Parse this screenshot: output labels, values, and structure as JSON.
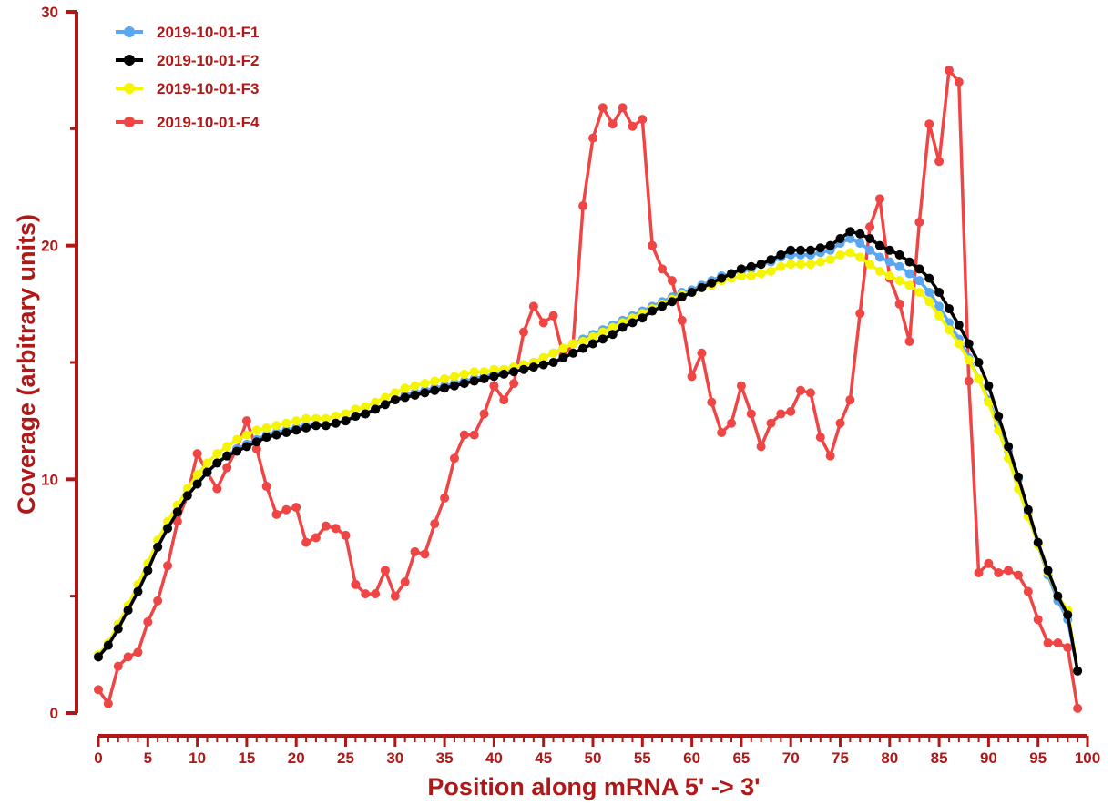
{
  "chart_data": {
    "type": "line",
    "title": "",
    "xlabel": "Position along mRNA 5' -> 3'",
    "ylabel": "Coverage (arbitrary units)",
    "xlim": [
      0,
      100
    ],
    "ylim": [
      0,
      30
    ],
    "x_ticks": [
      "0",
      "5",
      "10",
      "15",
      "20",
      "25",
      "30",
      "35",
      "40",
      "45",
      "50",
      "55",
      "60",
      "65",
      "70",
      "75",
      "80",
      "85",
      "90",
      "95",
      "100"
    ],
    "y_ticks": [
      "0",
      "10",
      "20",
      "30"
    ],
    "grid": false,
    "legend_position": "top-left",
    "series": [
      {
        "name": "2019-10-01-F1",
        "color": "#5aa6f0",
        "values": [
          2.4,
          2.9,
          3.6,
          4.4,
          5.2,
          6.1,
          7.1,
          7.9,
          8.6,
          9.3,
          9.8,
          10.3,
          10.7,
          11.0,
          11.3,
          11.5,
          11.7,
          11.9,
          12.0,
          12.1,
          12.2,
          12.3,
          12.3,
          12.3,
          12.4,
          12.5,
          12.7,
          12.8,
          13.0,
          13.2,
          13.4,
          13.6,
          13.7,
          13.8,
          13.9,
          14.0,
          14.1,
          14.2,
          14.3,
          14.4,
          14.5,
          14.6,
          14.8,
          14.9,
          15.0,
          15.2,
          15.4,
          15.6,
          15.8,
          16.0,
          16.2,
          16.4,
          16.6,
          16.8,
          17.0,
          17.2,
          17.4,
          17.6,
          17.8,
          18.0,
          18.1,
          18.3,
          18.5,
          18.7,
          18.8,
          18.9,
          19.0,
          19.2,
          19.3,
          19.5,
          19.6,
          19.6,
          19.6,
          19.7,
          19.8,
          20.1,
          20.3,
          20.1,
          19.8,
          19.5,
          19.3,
          19.1,
          18.8,
          18.5,
          18.0,
          17.4,
          16.7,
          16.0,
          15.2,
          14.3,
          13.4,
          12.3,
          11.2,
          10.0,
          8.6,
          7.2,
          5.9,
          4.8,
          4.0,
          1.8
        ]
      },
      {
        "name": "2019-10-01-F2",
        "color": "#000000",
        "values": [
          2.4,
          2.9,
          3.6,
          4.4,
          5.2,
          6.1,
          7.1,
          7.9,
          8.6,
          9.3,
          9.8,
          10.3,
          10.7,
          11.0,
          11.2,
          11.4,
          11.6,
          11.8,
          11.9,
          12.0,
          12.1,
          12.2,
          12.3,
          12.3,
          12.4,
          12.5,
          12.7,
          12.8,
          13.0,
          13.2,
          13.4,
          13.5,
          13.6,
          13.7,
          13.8,
          13.9,
          14.0,
          14.1,
          14.2,
          14.3,
          14.4,
          14.5,
          14.6,
          14.7,
          14.8,
          14.9,
          15.0,
          15.2,
          15.4,
          15.6,
          15.8,
          16.0,
          16.2,
          16.5,
          16.7,
          16.9,
          17.2,
          17.4,
          17.6,
          17.8,
          18.0,
          18.2,
          18.4,
          18.6,
          18.8,
          19.0,
          19.1,
          19.2,
          19.4,
          19.6,
          19.8,
          19.8,
          19.8,
          19.9,
          20.0,
          20.3,
          20.6,
          20.5,
          20.3,
          20.0,
          19.8,
          19.6,
          19.3,
          19.0,
          18.6,
          18.0,
          17.3,
          16.6,
          15.8,
          15.0,
          14.0,
          12.7,
          11.4,
          10.1,
          8.7,
          7.3,
          6.1,
          5.0,
          4.2,
          1.8
        ]
      },
      {
        "name": "2019-10-01-F3",
        "color": "#f5f500",
        "values": [
          2.5,
          3.0,
          3.8,
          4.6,
          5.5,
          6.4,
          7.4,
          8.2,
          8.9,
          9.6,
          10.2,
          10.7,
          11.1,
          11.4,
          11.7,
          11.9,
          12.1,
          12.2,
          12.3,
          12.4,
          12.5,
          12.6,
          12.6,
          12.6,
          12.7,
          12.8,
          13.0,
          13.1,
          13.3,
          13.5,
          13.7,
          13.9,
          14.0,
          14.1,
          14.2,
          14.3,
          14.4,
          14.5,
          14.6,
          14.6,
          14.7,
          14.7,
          14.8,
          14.9,
          15.0,
          15.2,
          15.4,
          15.6,
          15.8,
          15.9,
          16.1,
          16.3,
          16.5,
          16.7,
          16.9,
          17.1,
          17.3,
          17.5,
          17.7,
          17.9,
          18.0,
          18.2,
          18.3,
          18.5,
          18.6,
          18.7,
          18.7,
          18.8,
          18.9,
          19.1,
          19.2,
          19.2,
          19.2,
          19.3,
          19.4,
          19.6,
          19.7,
          19.5,
          19.2,
          18.9,
          18.7,
          18.5,
          18.3,
          18.0,
          17.6,
          17.0,
          16.4,
          15.8,
          15.1,
          14.3,
          13.3,
          12.1,
          10.9,
          9.6,
          8.4,
          7.2,
          6.0,
          5.0,
          4.4,
          1.8
        ]
      },
      {
        "name": "2019-10-01-F4",
        "color": "#f04545",
        "values": [
          1.0,
          0.4,
          2.0,
          2.4,
          2.6,
          3.9,
          4.8,
          6.3,
          8.2,
          9.3,
          11.1,
          10.3,
          9.6,
          10.5,
          11.3,
          12.5,
          11.3,
          9.7,
          8.5,
          8.7,
          8.8,
          7.3,
          7.5,
          8.0,
          7.9,
          7.6,
          5.5,
          5.1,
          5.1,
          6.1,
          5.0,
          5.6,
          6.9,
          6.8,
          8.1,
          9.2,
          10.9,
          11.9,
          11.9,
          12.8,
          14.0,
          13.4,
          14.1,
          16.3,
          17.4,
          16.7,
          17.0,
          15.3,
          15.8,
          21.7,
          24.6,
          25.9,
          25.2,
          25.9,
          25.1,
          25.4,
          20.0,
          19.0,
          18.5,
          16.8,
          14.4,
          15.4,
          13.3,
          12.0,
          12.4,
          14.0,
          12.8,
          11.4,
          12.4,
          12.8,
          12.9,
          13.8,
          13.7,
          11.8,
          11.0,
          12.4,
          13.4,
          17.1,
          20.8,
          22.0,
          18.6,
          17.5,
          15.9,
          21.0,
          25.2,
          23.6,
          27.5,
          27.0,
          14.2,
          6.0,
          6.4,
          6.0,
          6.1,
          5.9,
          5.2,
          4.0,
          3.0,
          3.0,
          2.8,
          0.2
        ]
      }
    ]
  }
}
